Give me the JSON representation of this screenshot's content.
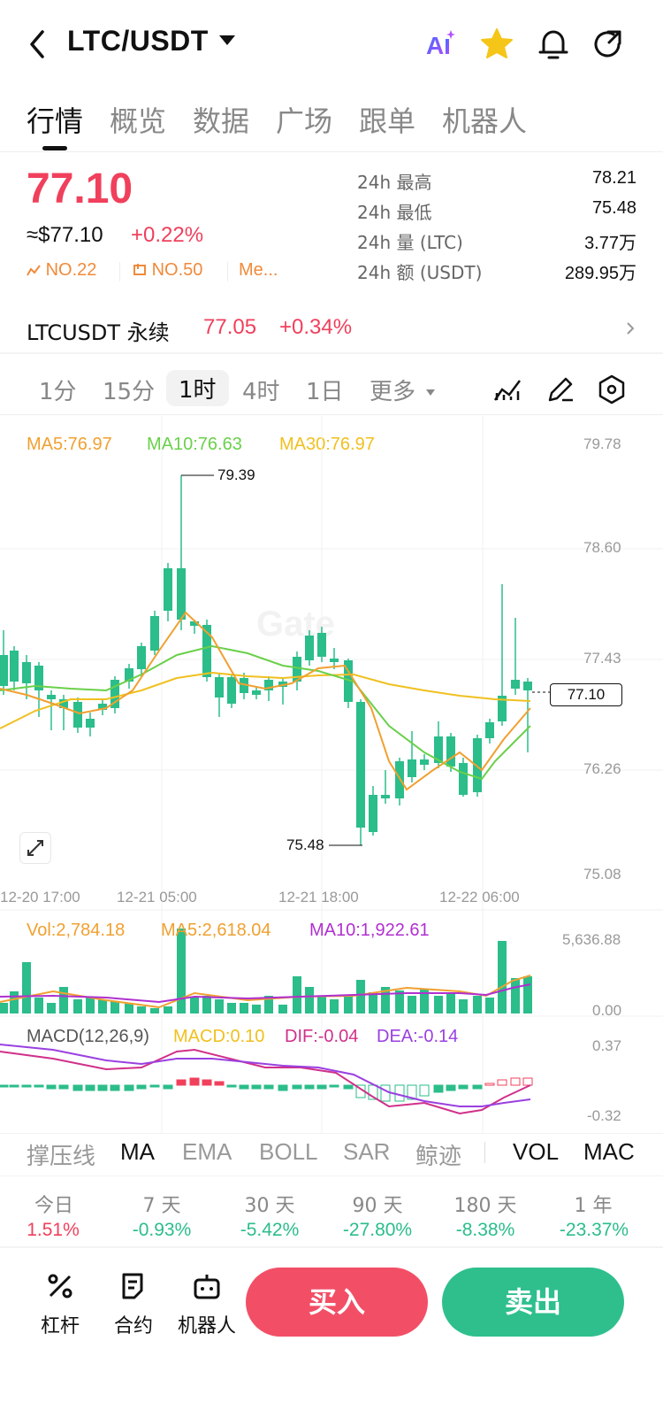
{
  "header": {
    "pair": "LTC/USDT",
    "icons": [
      "back-arrow-icon",
      "ai-icon",
      "star-icon",
      "bell-icon",
      "share-icon"
    ],
    "accent": "#f5c518"
  },
  "tabs": [
    {
      "label": "行情",
      "active": true
    },
    {
      "label": "概览"
    },
    {
      "label": "数据"
    },
    {
      "label": "广场"
    },
    {
      "label": "跟单"
    },
    {
      "label": "机器人"
    }
  ],
  "ticker": {
    "price": "77.10",
    "usd_price": "≈$77.10",
    "change": "+0.22%",
    "rank1": "NO.22",
    "rank2": "NO.50",
    "rank3": "Me...",
    "stats": [
      {
        "label": "24h  最高",
        "value": "78.21"
      },
      {
        "label": "24h  最低",
        "value": "75.48"
      },
      {
        "label": "24h  量 (LTC)",
        "value": "3.77万"
      },
      {
        "label": "24h  额 (USDT)",
        "value": "289.95万"
      }
    ]
  },
  "perpetual": {
    "name": "LTCUSDT 永续",
    "price": "77.05",
    "change": "+0.34%"
  },
  "intervals": [
    {
      "label": "1分"
    },
    {
      "label": "15分"
    },
    {
      "label": "1时",
      "active": true
    },
    {
      "label": "4时"
    },
    {
      "label": "1日"
    },
    {
      "label": "更多"
    }
  ],
  "chart": {
    "ma_labels": {
      "ma5": "MA5:76.97",
      "ma10": "MA10:76.63",
      "ma30": "MA30:76.97"
    },
    "y_ticks": [
      "79.78",
      "78.60",
      "77.43",
      "76.26",
      "75.08"
    ],
    "high_label": "79.39",
    "low_label": "75.48",
    "current": "77.10",
    "x_ticks": [
      "12-20 17:00",
      "12-21 05:00",
      "12-21 18:00",
      "12-22 06:00"
    ],
    "watermark": "Gate",
    "colors": {
      "up": "#f0405c",
      "down": "#2bbd8a",
      "ma5": "#f0a030",
      "ma10": "#6ad04a",
      "ma30": "#f0c020"
    }
  },
  "volume": {
    "vol": "Vol:2,784.18",
    "ma5": "MA5:2,618.04",
    "ma10": "MA10:1,922.61",
    "y_max": "5,636.88",
    "y_min": "0.00"
  },
  "macd": {
    "title": "MACD(12,26,9)",
    "macd": "MACD:0.10",
    "dif": "DIF:-0.04",
    "dea": "DEA:-0.14",
    "y_max": "0.37",
    "y_min": "-0.32"
  },
  "indicators": [
    "撑压线",
    "MA",
    "EMA",
    "BOLL",
    "SAR",
    "鲸迹",
    "VOL",
    "MAC"
  ],
  "performance": [
    {
      "label": "今日",
      "value": "1.51%"
    },
    {
      "label": "7 天",
      "value": "-0.93%"
    },
    {
      "label": "30 天",
      "value": "-5.42%"
    },
    {
      "label": "90 天",
      "value": "-27.80%"
    },
    {
      "label": "180 天",
      "value": "-8.38%"
    },
    {
      "label": "1 年",
      "value": "-23.37%"
    }
  ],
  "footer": {
    "leverage": "杠杆",
    "contract": "合约",
    "robot": "机器人",
    "buy": "买入",
    "sell": "卖出"
  }
}
